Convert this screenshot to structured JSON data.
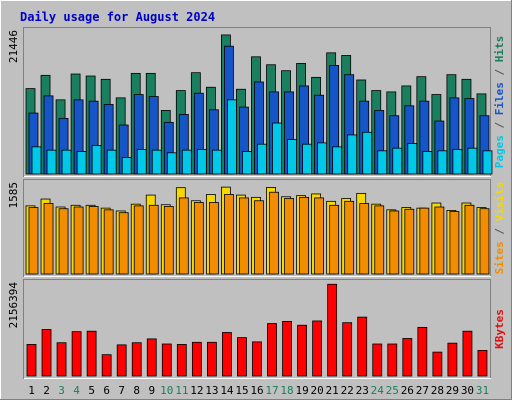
{
  "chart_data": {
    "type": "bar",
    "title": "Daily usage for August 2024",
    "days": [
      "1",
      "2",
      "3",
      "4",
      "5",
      "6",
      "7",
      "8",
      "9",
      "10",
      "11",
      "12",
      "13",
      "14",
      "15",
      "16",
      "17",
      "18",
      "19",
      "20",
      "21",
      "22",
      "23",
      "24",
      "25",
      "26",
      "27",
      "28",
      "29",
      "30",
      "31"
    ],
    "weekend_days": [
      "3",
      "4",
      "10",
      "11",
      "17",
      "18",
      "24",
      "25",
      "31"
    ],
    "panels": [
      {
        "id": "hits-files-pages",
        "ymax_label": "21446",
        "ymax": 21446,
        "right_label": [
          {
            "text": "Pages",
            "color": "#00c8e8"
          },
          {
            "text": " / ",
            "color": "#555555"
          },
          {
            "text": "Files",
            "color": "#1555c8"
          },
          {
            "text": " / ",
            "color": "#555555"
          },
          {
            "text": "Hits",
            "color": "#1a7f5f"
          }
        ],
        "series": [
          {
            "name": "Hits",
            "color": "#1a7f5f",
            "values": [
              12900,
              14900,
              11200,
              15100,
              14800,
              14300,
              11500,
              15200,
              15200,
              9600,
              12600,
              15300,
              13100,
              21000,
              12800,
              17700,
              16500,
              15600,
              16700,
              14600,
              18300,
              17900,
              14200,
              12600,
              12400,
              13300,
              14700,
              12000,
              15000,
              14300,
              12100
            ]
          },
          {
            "name": "Files",
            "color": "#1555c8",
            "values": [
              9200,
              11800,
              8400,
              11200,
              11000,
              10500,
              7400,
              12000,
              11700,
              7800,
              9000,
              12200,
              9700,
              19300,
              10100,
              13900,
              12400,
              12400,
              13300,
              11900,
              16400,
              15000,
              11000,
              9600,
              8800,
              10300,
              11000,
              8000,
              11500,
              11400,
              8800
            ]
          },
          {
            "name": "Pages",
            "color": "#00c8e8",
            "values": [
              4100,
              3600,
              3600,
              3400,
              4300,
              3600,
              2500,
              3700,
              3600,
              3200,
              3600,
              3700,
              3600,
              11200,
              3400,
              4500,
              7700,
              5200,
              4500,
              4700,
              4100,
              5900,
              6300,
              3500,
              3900,
              4600,
              3400,
              3500,
              3700,
              3900,
              3500
            ]
          }
        ]
      },
      {
        "id": "visits-sites",
        "ymax_label": "1585",
        "ymax": 1585,
        "right_label": [
          {
            "text": "Sites",
            "color": "#f28c00"
          },
          {
            "text": " / ",
            "color": "#555555"
          },
          {
            "text": "Visits",
            "color": "#f5d800"
          }
        ],
        "series": [
          {
            "name": "Visits",
            "color": "#f5d800",
            "values": [
              1200,
              1320,
              1180,
              1210,
              1210,
              1160,
              1110,
              1230,
              1390,
              1220,
              1520,
              1290,
              1400,
              1530,
              1390,
              1350,
              1525,
              1360,
              1380,
              1410,
              1280,
              1330,
              1420,
              1230,
              1130,
              1170,
              1160,
              1250,
              1120,
              1250,
              1170
            ]
          },
          {
            "name": "Sites",
            "color": "#f28c00",
            "values": [
              1170,
              1240,
              1150,
              1180,
              1190,
              1130,
              1080,
              1200,
              1210,
              1190,
              1340,
              1260,
              1260,
              1400,
              1340,
              1290,
              1440,
              1330,
              1350,
              1340,
              1210,
              1280,
              1240,
              1200,
              1110,
              1140,
              1160,
              1180,
              1100,
              1210,
              1150
            ]
          }
        ]
      },
      {
        "id": "kbytes",
        "ymax_label": "2156394",
        "ymax": 2156394,
        "right_label": [
          {
            "text": "KBytes",
            "color": "#e01010"
          }
        ],
        "series": [
          {
            "name": "KBytes",
            "color": "#ff0000",
            "values": [
              740000,
              1090000,
              780000,
              1040000,
              1050000,
              500000,
              730000,
              780000,
              870000,
              750000,
              740000,
              790000,
              790000,
              1020000,
              900000,
              800000,
              1230000,
              1280000,
              1190000,
              1290000,
              2150000,
              1250000,
              1380000,
              750000,
              750000,
              880000,
              1140000,
              560000,
              770000,
              1050000,
              600000
            ]
          }
        ]
      }
    ]
  }
}
